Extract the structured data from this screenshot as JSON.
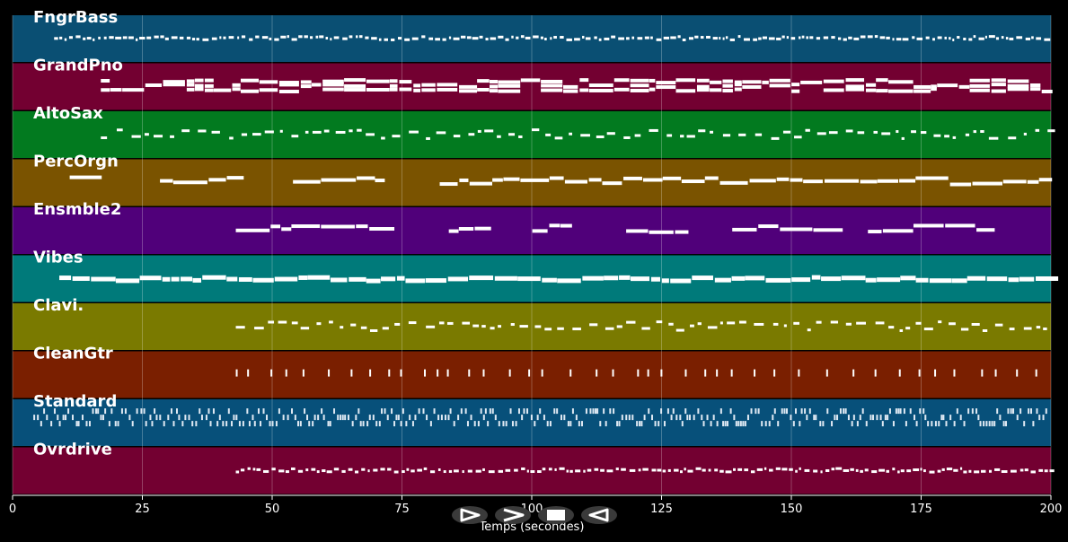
{
  "tracks": [
    {
      "name": "FngrBass",
      "color": "#0a4f73",
      "start": 8,
      "end": 200,
      "style": "dots"
    },
    {
      "name": "GrandPno",
      "color": "#730031",
      "start": 17,
      "end": 200,
      "style": "thick"
    },
    {
      "name": "AltoSax",
      "color": "#027a1f",
      "start": 17,
      "end": 200,
      "style": "sparse"
    },
    {
      "name": "PercOrgn",
      "color": "#7a5300",
      "start": 11,
      "end": 200,
      "style": "lines"
    },
    {
      "name": "Ensmble2",
      "color": "#50007a",
      "start": 43,
      "end": 186,
      "style": "lines"
    },
    {
      "name": "Vibes",
      "color": "#007a7a",
      "start": 9,
      "end": 200,
      "style": "solid"
    },
    {
      "name": "Clavi.",
      "color": "#7a7a00",
      "start": 43,
      "end": 200,
      "style": "sparse"
    },
    {
      "name": "CleanGtr",
      "color": "#7a1f00",
      "start": 43,
      "end": 200,
      "style": "ticks"
    },
    {
      "name": "Standard",
      "color": "#07507a",
      "start": 4,
      "end": 199,
      "style": "dense"
    },
    {
      "name": "Ovrdrive",
      "color": "#730031",
      "start": 43,
      "end": 200,
      "style": "dots"
    }
  ],
  "x_axis": {
    "label": "Temps (secondes)",
    "min": 0,
    "max": 200,
    "ticks": [
      0,
      25,
      50,
      75,
      100,
      125,
      150,
      175,
      200
    ]
  },
  "controls": [
    {
      "name": "play-forward-button",
      "glyph": "play-outline-icon"
    },
    {
      "name": "next-button",
      "glyph": "chevron-right-icon"
    },
    {
      "name": "stop-button",
      "glyph": "stop-icon"
    },
    {
      "name": "play-reverse-button",
      "glyph": "play-reverse-outline-icon"
    }
  ],
  "colors": {
    "background": "#000000",
    "note": "#ffffff",
    "grid": "#ffffff"
  }
}
